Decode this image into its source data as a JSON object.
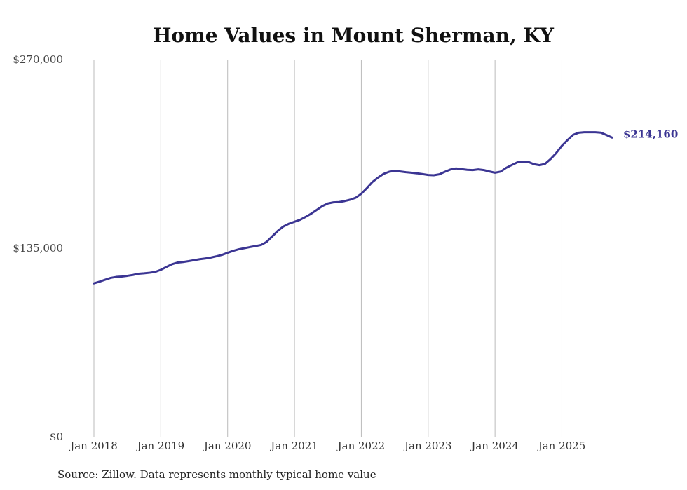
{
  "source_note": "Source: Zillow. Data represents monthly typical home value",
  "colors": {
    "line": "#3b3593",
    "grid": "#bbbbbb",
    "background": "#ffffff"
  },
  "chart_data": {
    "type": "line",
    "title": "Home Values in Mount Sherman, KY",
    "xlabel": "",
    "ylabel": "",
    "ylim": [
      0,
      270000
    ],
    "y_ticks": [
      0,
      135000,
      270000
    ],
    "y_tick_labels": [
      "$0",
      "$135,000",
      "$270,000"
    ],
    "x_ticks": [
      "2018-01",
      "2019-01",
      "2020-01",
      "2021-01",
      "2022-01",
      "2023-01",
      "2024-01",
      "2025-01"
    ],
    "x_tick_labels": [
      "Jan 2018",
      "Jan 2019",
      "Jan 2020",
      "Jan 2021",
      "Jan 2022",
      "Jan 2023",
      "Jan 2024",
      "Jan 2025"
    ],
    "x_range": [
      "2018-01",
      "2025-10"
    ],
    "grid": {
      "vertical": true,
      "horizontal": false
    },
    "end_label": "$214,160",
    "series": [
      {
        "x": [
          "2018-01",
          "2018-02",
          "2018-03",
          "2018-04",
          "2018-05",
          "2018-06",
          "2018-07",
          "2018-08",
          "2018-09",
          "2018-10",
          "2018-11",
          "2018-12",
          "2019-01",
          "2019-02",
          "2019-03",
          "2019-04",
          "2019-05",
          "2019-06",
          "2019-07",
          "2019-08",
          "2019-09",
          "2019-10",
          "2019-11",
          "2019-12",
          "2020-01",
          "2020-02",
          "2020-03",
          "2020-04",
          "2020-05",
          "2020-06",
          "2020-07",
          "2020-08",
          "2020-09",
          "2020-10",
          "2020-11",
          "2020-12",
          "2021-01",
          "2021-02",
          "2021-03",
          "2021-04",
          "2021-05",
          "2021-06",
          "2021-07",
          "2021-08",
          "2021-09",
          "2021-10",
          "2021-11",
          "2021-12",
          "2022-01",
          "2022-02",
          "2022-03",
          "2022-04",
          "2022-05",
          "2022-06",
          "2022-07",
          "2022-08",
          "2022-09",
          "2022-10",
          "2022-11",
          "2022-12",
          "2023-01",
          "2023-02",
          "2023-03",
          "2023-04",
          "2023-05",
          "2023-06",
          "2023-07",
          "2023-08",
          "2023-09",
          "2023-10",
          "2023-11",
          "2023-12",
          "2024-01",
          "2024-02",
          "2024-03",
          "2024-04",
          "2024-05",
          "2024-06",
          "2024-07",
          "2024-08",
          "2024-09",
          "2024-10",
          "2024-11",
          "2024-12",
          "2025-01",
          "2025-02",
          "2025-03",
          "2025-04",
          "2025-05",
          "2025-06",
          "2025-07",
          "2025-08",
          "2025-09",
          "2025-10"
        ],
        "values": [
          109800,
          111000,
          112400,
          113700,
          114400,
          114700,
          115200,
          115800,
          116700,
          117000,
          117400,
          118000,
          119500,
          121500,
          123500,
          124700,
          125100,
          125700,
          126400,
          127100,
          127600,
          128300,
          129200,
          130200,
          131700,
          133100,
          134200,
          135000,
          135800,
          136500,
          137300,
          139500,
          143400,
          147400,
          150500,
          152500,
          153900,
          155300,
          157400,
          159700,
          162400,
          165100,
          167000,
          167800,
          168000,
          168700,
          169700,
          171100,
          174000,
          178000,
          182400,
          185500,
          188200,
          189700,
          190300,
          189900,
          189400,
          189000,
          188600,
          188000,
          187400,
          187200,
          187900,
          189700,
          191300,
          192100,
          191600,
          191100,
          190900,
          191400,
          190900,
          189900,
          189000,
          189800,
          192500,
          194500,
          196400,
          196900,
          196700,
          195100,
          194400,
          195400,
          198900,
          203200,
          208300,
          212300,
          216100,
          217600,
          218000,
          218000,
          218000,
          217700,
          216000,
          214160
        ]
      }
    ]
  }
}
